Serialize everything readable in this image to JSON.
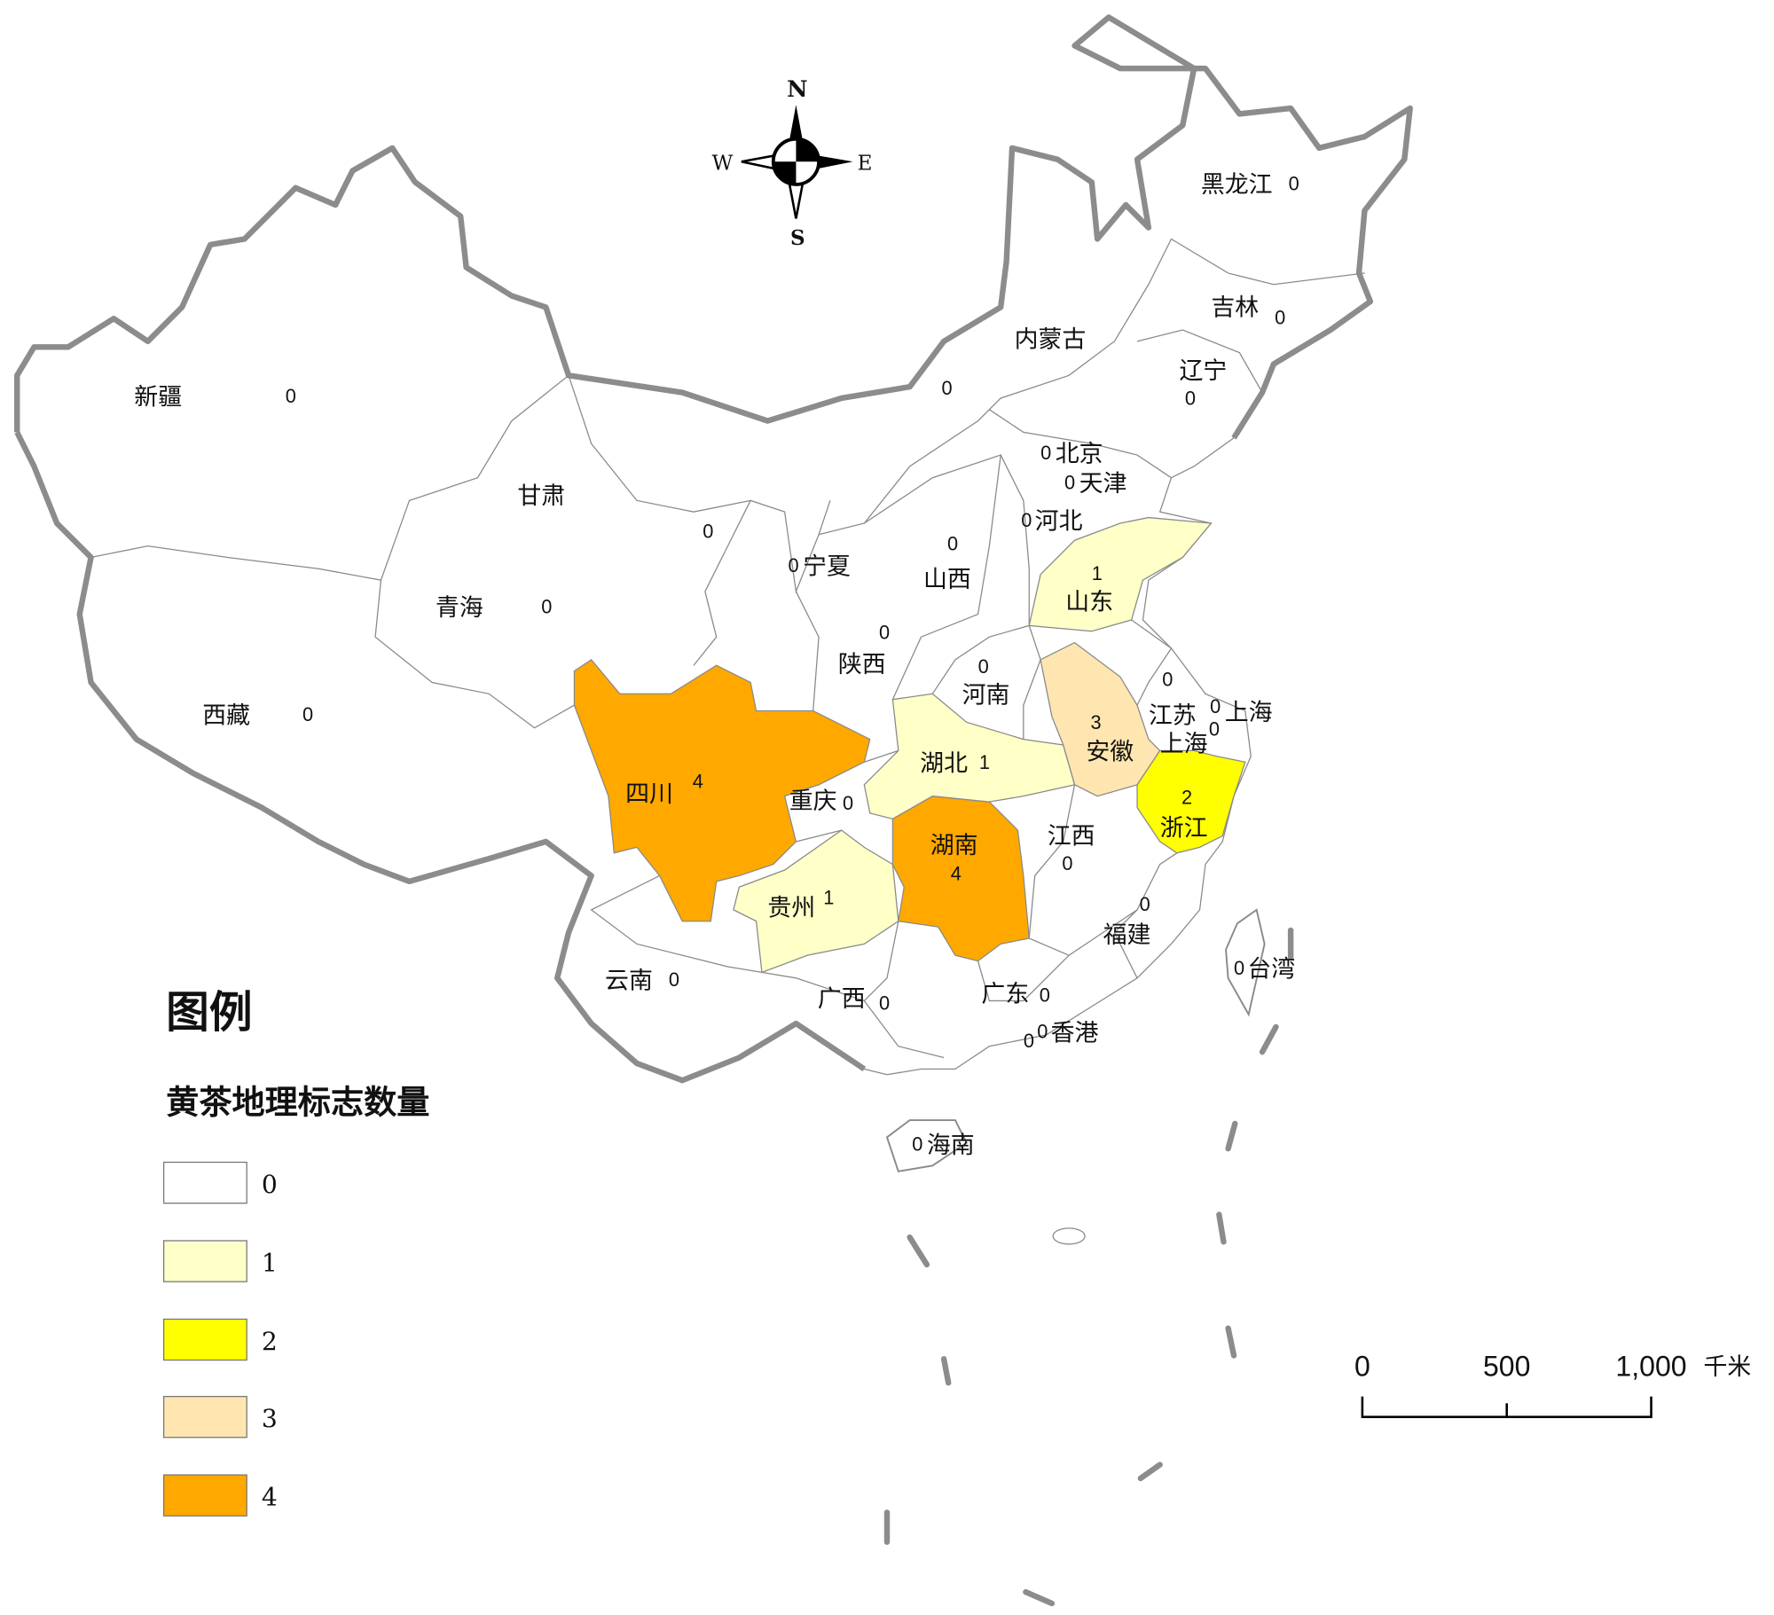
{
  "legend": {
    "title": "图例",
    "subtitle": "黄茶地理标志数量",
    "classes": [
      {
        "label": "0",
        "color": "#FFFFFF"
      },
      {
        "label": "1",
        "color": "#FFFFC8"
      },
      {
        "label": "2",
        "color": "#FFFF00"
      },
      {
        "label": "3",
        "color": "#FFE6B0"
      },
      {
        "label": "4",
        "color": "#FFA800"
      }
    ]
  },
  "compass": {
    "n": "N",
    "s": "S",
    "e": "E",
    "w": "W"
  },
  "scale_bar": {
    "ticks": [
      "0",
      "500",
      "1,000"
    ],
    "unit": "千米"
  },
  "provinces": [
    {
      "name": "新疆",
      "count": "0"
    },
    {
      "name": "西藏",
      "count": "0"
    },
    {
      "name": "青海",
      "count": "0"
    },
    {
      "name": "甘肃",
      "count": "0"
    },
    {
      "name": "宁夏",
      "count": "0"
    },
    {
      "name": "陕西",
      "count": "0"
    },
    {
      "name": "山西",
      "count": "0"
    },
    {
      "name": "内蒙古",
      "count": "0"
    },
    {
      "name": "黑龙江",
      "count": "0"
    },
    {
      "name": "吉林",
      "count": "0"
    },
    {
      "name": "辽宁",
      "count": "0"
    },
    {
      "name": "北京",
      "count": "0"
    },
    {
      "name": "天津",
      "count": "0"
    },
    {
      "name": "河北",
      "count": "0"
    },
    {
      "name": "山东",
      "count": "1"
    },
    {
      "name": "河南",
      "count": "0"
    },
    {
      "name": "江苏",
      "count": "0"
    },
    {
      "name": "上海",
      "count": "0"
    },
    {
      "name": "安徽",
      "count": "3"
    },
    {
      "name": "浙江",
      "count": "2"
    },
    {
      "name": "湖北",
      "count": "1"
    },
    {
      "name": "重庆",
      "count": "0"
    },
    {
      "name": "四川",
      "count": "4"
    },
    {
      "name": "湖南",
      "count": "4"
    },
    {
      "name": "江西",
      "count": "0"
    },
    {
      "name": "贵州",
      "count": "1"
    },
    {
      "name": "福建",
      "count": "0"
    },
    {
      "name": "台湾",
      "count": "0"
    },
    {
      "name": "云南",
      "count": "0"
    },
    {
      "name": "广西",
      "count": "0"
    },
    {
      "name": "广东",
      "count": "0"
    },
    {
      "name": "香港",
      "count": "0"
    },
    {
      "name": "海南",
      "count": "0"
    },
    {
      "name": "上海",
      "count": "0"
    },
    {
      "name": "",
      "count": "0"
    }
  ]
}
